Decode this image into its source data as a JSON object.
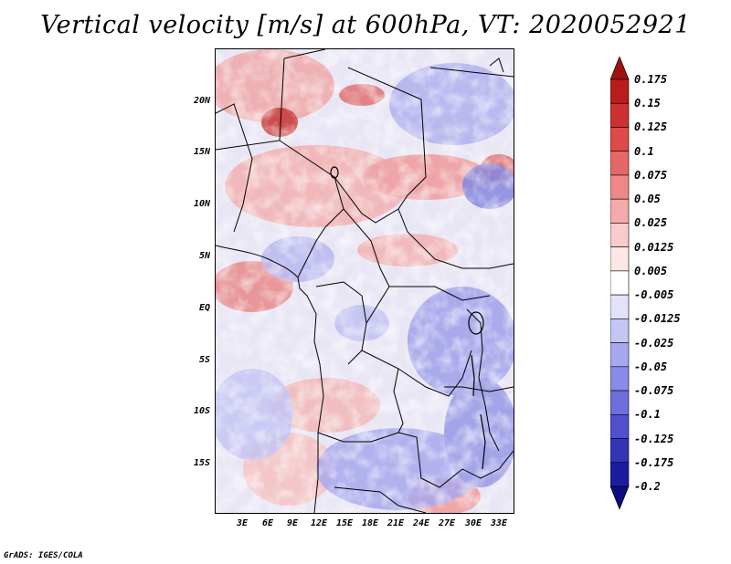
{
  "title": "Vertical velocity [m/s] at 600hPa, VT: 2020052921",
  "footer": "GrADS: IGES/COLA",
  "map": {
    "lon_ticks": [
      "3E",
      "6E",
      "9E",
      "12E",
      "15E",
      "18E",
      "21E",
      "24E",
      "27E",
      "30E",
      "33E"
    ],
    "lat_ticks": [
      "20N",
      "15N",
      "10N",
      "5N",
      "EQ",
      "5S",
      "10S",
      "15S"
    ]
  },
  "colorbar": {
    "levels": [
      "0.175",
      "0.15",
      "0.125",
      "0.1",
      "0.075",
      "0.05",
      "0.025",
      "0.0125",
      "0.005",
      "-0.005",
      "-0.0125",
      "-0.025",
      "-0.05",
      "-0.075",
      "-0.1",
      "-0.125",
      "-0.175",
      "-0.2"
    ],
    "colors": [
      "#a01010",
      "#b81c1c",
      "#cc3030",
      "#dc4a4a",
      "#e56868",
      "#ee8888",
      "#f4aaaa",
      "#f8cccc",
      "#fde6e6",
      "#ffffff",
      "#e2e2fb",
      "#c6c6f6",
      "#a8a8f0",
      "#8a8ae8",
      "#6e6edc",
      "#5050cc",
      "#3434b8",
      "#1c1ca0",
      "#0c0c80"
    ]
  }
}
